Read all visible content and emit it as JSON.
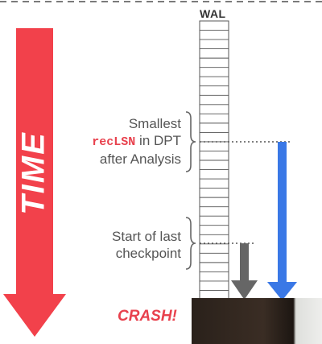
{
  "time_label": "TIME",
  "wal": {
    "title": "WAL",
    "record_count": 30
  },
  "markers": [
    {
      "id": "smallest-reclsn",
      "lines": [
        "Smallest",
        "recLSN in DPT",
        "after Analysis"
      ],
      "code_token": "recLSN",
      "arrow_color": "#3a78e6"
    },
    {
      "id": "checkpoint-start",
      "lines": [
        "Start of last",
        "checkpoint"
      ],
      "arrow_color": "#666666"
    }
  ],
  "crash_label": "CRASH!",
  "colors": {
    "time_arrow": "#f2414b",
    "recovery_arrow": "#3a78e6",
    "checkpoint_arrow": "#666666",
    "accent_text": "#e8414d",
    "dashed_border": "#7a7a7a",
    "wal_stroke": "#555555"
  }
}
